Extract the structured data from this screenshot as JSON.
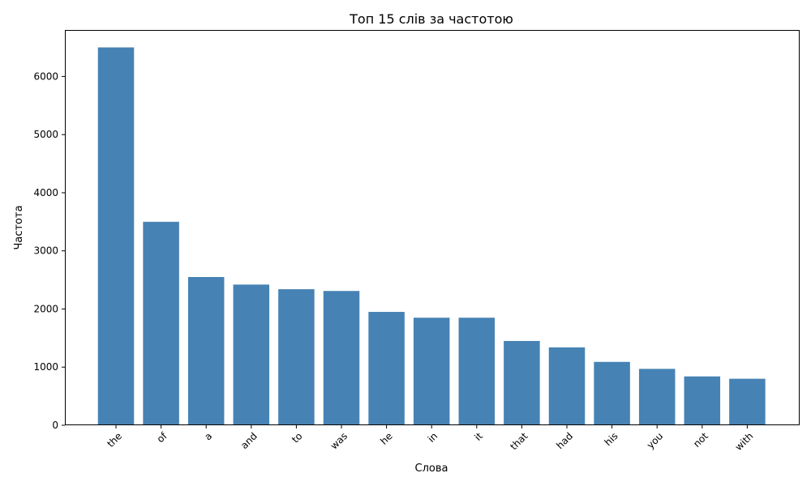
{
  "chart_data": {
    "type": "bar",
    "title": "Топ 15 слів за частотою",
    "xlabel": "Слова",
    "ylabel": "Частота",
    "categories": [
      "the",
      "of",
      "a",
      "and",
      "to",
      "was",
      "he",
      "in",
      "it",
      "that",
      "had",
      "his",
      "you",
      "not",
      "with"
    ],
    "values": [
      6500,
      3500,
      2550,
      2420,
      2340,
      2310,
      1950,
      1850,
      1850,
      1450,
      1340,
      1090,
      970,
      840,
      800
    ],
    "ylim": [
      0,
      6800
    ],
    "yticks": [
      0,
      1000,
      2000,
      3000,
      4000,
      5000,
      6000
    ],
    "bar_color": "#4682b4",
    "grid": false,
    "xtick_rotation": 45
  }
}
